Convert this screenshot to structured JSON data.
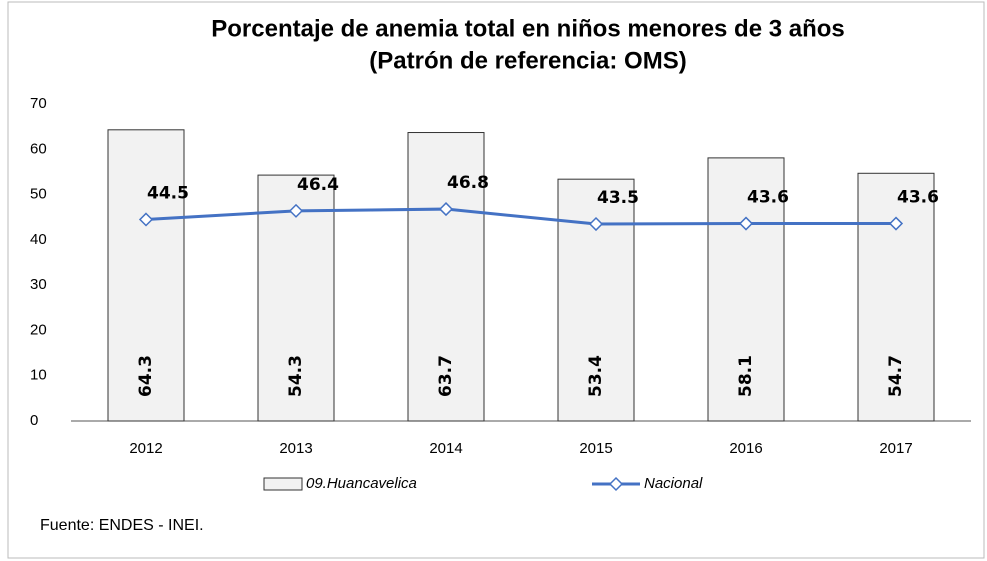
{
  "chart_data": {
    "type": "bar",
    "title": "Porcentaje de anemia total en niños menores de 3 años",
    "subtitle": "(Patrón de referencia: OMS)",
    "categories": [
      "2012",
      "2013",
      "2014",
      "2015",
      "2016",
      "2017"
    ],
    "series": [
      {
        "name": "09.Huancavelica",
        "type": "bar",
        "color": "#f2f2f2",
        "values": [
          64.3,
          54.3,
          63.7,
          53.4,
          58.1,
          54.7
        ]
      },
      {
        "name": "Nacional",
        "type": "line",
        "color": "#4472c4",
        "values": [
          44.5,
          46.4,
          46.8,
          43.5,
          43.6,
          43.6
        ]
      }
    ],
    "ylim": [
      0,
      70
    ],
    "yticks": [
      0,
      10,
      20,
      30,
      40,
      50,
      60,
      70
    ],
    "grid": false,
    "legend": "bottom",
    "source": "Fuente: ENDES - INEI."
  }
}
